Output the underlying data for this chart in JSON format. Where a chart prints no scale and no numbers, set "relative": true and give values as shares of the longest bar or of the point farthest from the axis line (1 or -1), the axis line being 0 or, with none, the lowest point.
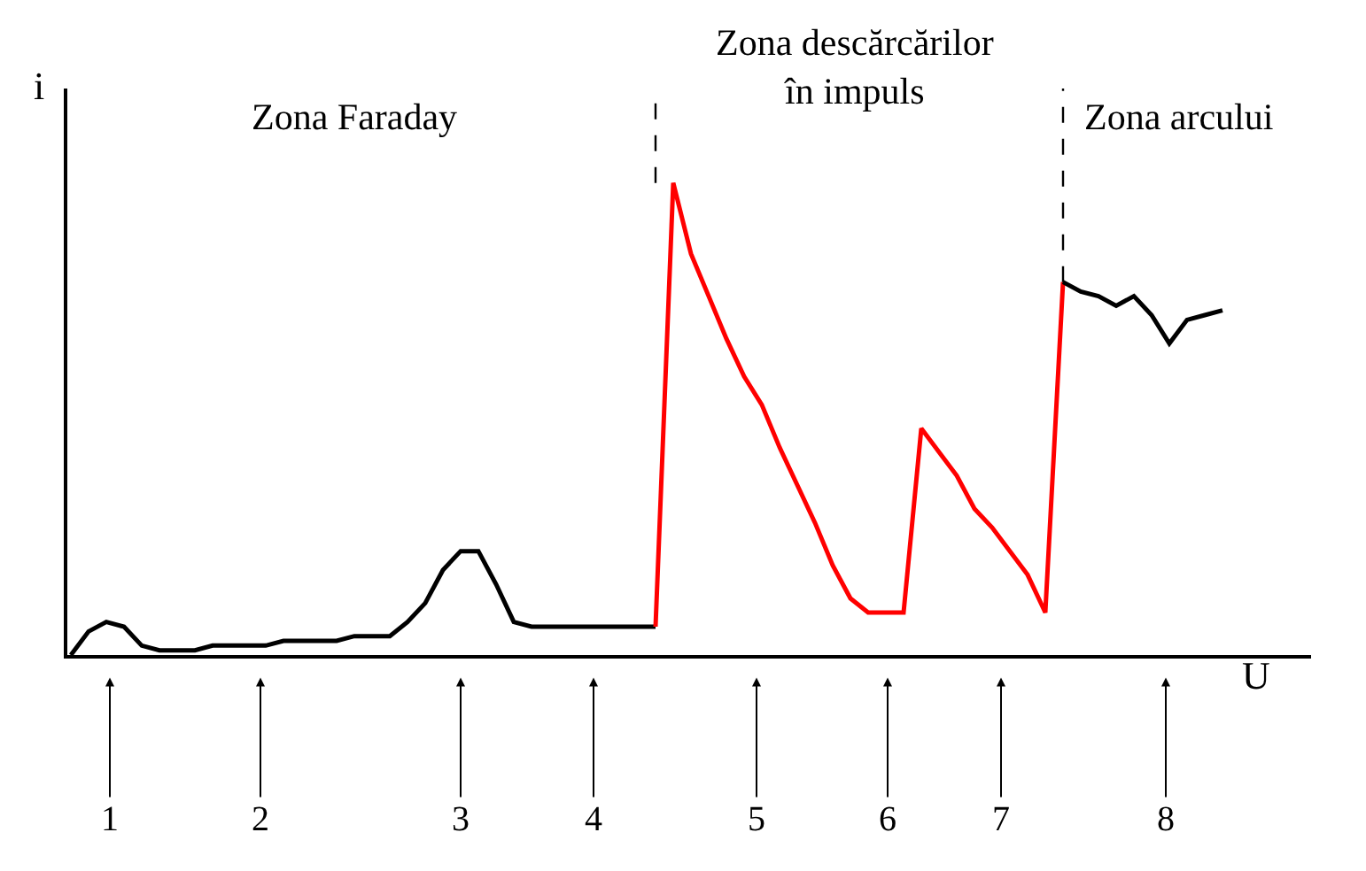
{
  "chart_data": {
    "type": "line",
    "relative": true,
    "xlabel": "U",
    "ylabel": "i",
    "categories": [
      null,
      null,
      null,
      null,
      null,
      null,
      null,
      null,
      null,
      null,
      null,
      null,
      null,
      null,
      null,
      null,
      null,
      null,
      null,
      null,
      null,
      null,
      null,
      null,
      null,
      null,
      null,
      null,
      null,
      null,
      null,
      null,
      null,
      null,
      null,
      null,
      null,
      null,
      null,
      null,
      null,
      null,
      null,
      null,
      null,
      null,
      null,
      null,
      null,
      null,
      null,
      null,
      null,
      null,
      null,
      null,
      null,
      null,
      null,
      null,
      null,
      null,
      null,
      null,
      null,
      null
    ],
    "series": [
      {
        "color": "#000000",
        "values": [
          0,
          0.05,
          0.07,
          0.06,
          0.02,
          0.01,
          0.01,
          0.01,
          0.02,
          0.02,
          0.02,
          0.02,
          0.03,
          0.03,
          0.03,
          0.03,
          0.04,
          0.04,
          0.04,
          0.07,
          0.11,
          0.18,
          0.22,
          0.22,
          0.15,
          0.07,
          0.06,
          0.06,
          0.06,
          0.06,
          0.06,
          0.06,
          0.06,
          0.06,
          null,
          null,
          null,
          null,
          null,
          null,
          null,
          null,
          null,
          null,
          null,
          null,
          null,
          null,
          null,
          null,
          null,
          null,
          null,
          null,
          null,
          null,
          null,
          null,
          null,
          null,
          null,
          null,
          null,
          null,
          null,
          null
        ]
      },
      {
        "color": "#ff0000",
        "values": [
          null,
          null,
          null,
          null,
          null,
          null,
          null,
          null,
          null,
          null,
          null,
          null,
          null,
          null,
          null,
          null,
          null,
          null,
          null,
          null,
          null,
          null,
          null,
          null,
          null,
          null,
          null,
          null,
          null,
          null,
          null,
          null,
          null,
          0.06,
          1.0,
          0.85,
          0.76,
          0.67,
          0.59,
          0.53,
          0.44,
          0.36,
          0.28,
          0.19,
          0.12,
          0.09,
          0.09,
          0.09,
          0.48,
          0.43,
          0.38,
          0.31,
          0.27,
          0.22,
          0.17,
          0.09,
          0.79,
          null,
          null,
          null,
          null,
          null,
          null,
          null,
          null,
          null
        ]
      },
      {
        "color": "#000000",
        "values": [
          null,
          null,
          null,
          null,
          null,
          null,
          null,
          null,
          null,
          null,
          null,
          null,
          null,
          null,
          null,
          null,
          null,
          null,
          null,
          null,
          null,
          null,
          null,
          null,
          null,
          null,
          null,
          null,
          null,
          null,
          null,
          null,
          null,
          null,
          null,
          null,
          null,
          null,
          null,
          null,
          null,
          null,
          null,
          null,
          null,
          null,
          null,
          null,
          null,
          null,
          null,
          null,
          null,
          null,
          null,
          null,
          0.79,
          0.77,
          0.76,
          0.74,
          0.76,
          0.72,
          0.66,
          0.71,
          0.72,
          0.73
        ]
      }
    ],
    "annotations": [
      "Zona Faraday",
      "Zona descărcărilor\nîn impuls",
      "Zona arcului",
      "1",
      "2",
      "3",
      "4",
      "5",
      "6",
      "7",
      "8"
    ],
    "line_style": "solid"
  }
}
